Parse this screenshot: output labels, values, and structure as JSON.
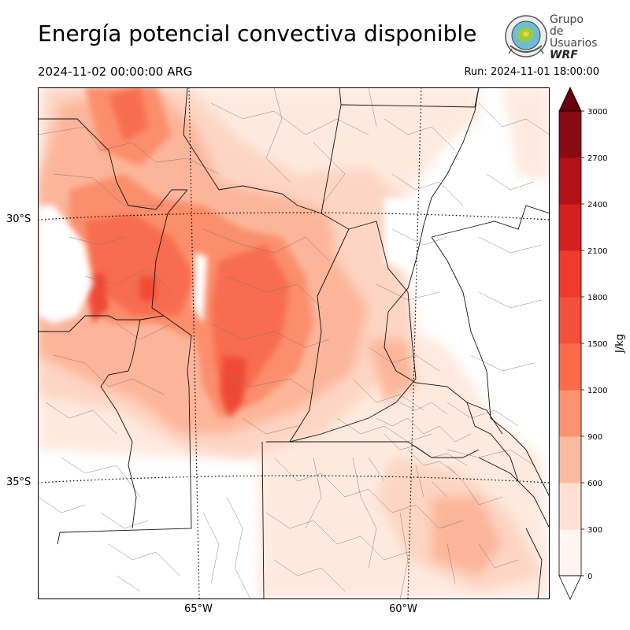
{
  "header": {
    "title": "Energía potencial convectiva disponible",
    "valid_time": "2024-11-02 00:00:00 ARG",
    "run_time": "Run: 2024-11-01 18:00:00"
  },
  "logo": {
    "line1": "Grupo de",
    "line2": "Usuarios",
    "line3": "WRF"
  },
  "map": {
    "lat_labels": [
      "30°S",
      "35°S"
    ],
    "lon_labels": [
      "65°W",
      "60°W"
    ]
  },
  "colorbar": {
    "label": "J/kg",
    "ticks": [
      "0",
      "300",
      "600",
      "900",
      "1200",
      "1500",
      "1800",
      "2100",
      "2400",
      "2700",
      "3000"
    ],
    "colors": [
      "#fff5f0",
      "#fee0d2",
      "#fcbba1",
      "#fc9272",
      "#fb6a4a",
      "#f4513c",
      "#ef3b2c",
      "#d42020",
      "#b11218",
      "#8a0a14",
      "#67000d"
    ]
  }
}
